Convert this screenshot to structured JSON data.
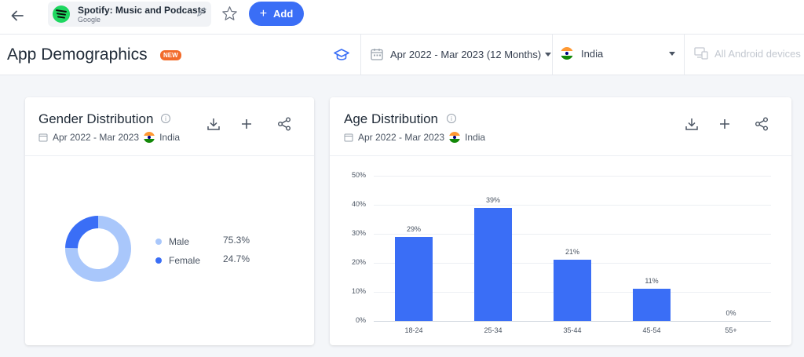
{
  "topbar": {
    "app_name": "Spotify: Music and Podcasts",
    "app_publisher": "Google",
    "add_label": "Add"
  },
  "header": {
    "title": "App Demographics",
    "badge": "NEW",
    "date_range": "Apr 2022 - Mar 2023 (12 Months)",
    "country": "India",
    "devices": "All Android devices"
  },
  "gender_card": {
    "title": "Gender Distribution",
    "date_range": "Apr 2022 - Mar 2023",
    "country": "India",
    "legend": [
      {
        "label": "Male",
        "value": "75.3%",
        "color": "#a9c7fb"
      },
      {
        "label": "Female",
        "value": "24.7%",
        "color": "#3a6ef6"
      }
    ]
  },
  "age_card": {
    "title": "Age Distribution",
    "date_range": "Apr 2022 - Mar 2023",
    "country": "India"
  },
  "chart_data": [
    {
      "type": "pie",
      "title": "Gender Distribution",
      "categories": [
        "Male",
        "Female"
      ],
      "values": [
        75.3,
        24.7
      ],
      "colors": [
        "#a9c7fb",
        "#3a6ef6"
      ],
      "legend": "right"
    },
    {
      "type": "bar",
      "title": "Age Distribution",
      "categories": [
        "18-24",
        "25-34",
        "35-44",
        "45-54",
        "55+"
      ],
      "values": [
        29,
        39,
        21,
        11,
        0
      ],
      "value_labels": [
        "29%",
        "39%",
        "21%",
        "11%",
        "0%"
      ],
      "yticks": [
        "0%",
        "10%",
        "20%",
        "30%",
        "40%",
        "50%"
      ],
      "ylim": [
        0,
        50
      ],
      "grid": true,
      "color": "#3a6ef6"
    }
  ]
}
